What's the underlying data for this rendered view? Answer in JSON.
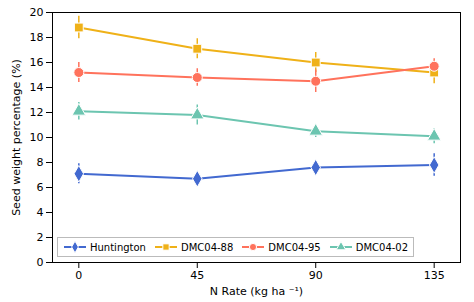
{
  "chart_data": {
    "type": "line",
    "xlabel": "N Rate (kg ha ⁻¹)",
    "ylabel": "Seed weight percentage (%)",
    "x": [
      0,
      45,
      90,
      135
    ],
    "series": [
      {
        "name": "Huntington",
        "values": [
          7.1,
          6.7,
          7.6,
          7.8
        ],
        "yerr": [
          0.8,
          0.4,
          0.3,
          0.9
        ],
        "marker": "diamond"
      },
      {
        "name": "DMC04-88",
        "values": [
          18.8,
          17.1,
          16.0,
          15.2
        ],
        "yerr": [
          0.9,
          0.8,
          0.8,
          0.9
        ],
        "marker": "square"
      },
      {
        "name": "DMC04-95",
        "values": [
          15.2,
          14.8,
          14.5,
          15.7
        ],
        "yerr": [
          0.8,
          0.7,
          0.9,
          0.6
        ],
        "marker": "circle"
      },
      {
        "name": "DMC04-02",
        "values": [
          12.1,
          11.8,
          10.5,
          10.1
        ],
        "yerr": [
          0.7,
          0.8,
          0.5,
          0.6
        ],
        "marker": "triangle"
      }
    ],
    "xlim": [
      -10,
      145
    ],
    "xticks": [
      0,
      45,
      90,
      135
    ],
    "ylim": [
      0,
      20
    ],
    "yticks": [
      0,
      2,
      4,
      6,
      8,
      10,
      12,
      14,
      16,
      18,
      20
    ],
    "legend": "lower left",
    "grid": false
  }
}
